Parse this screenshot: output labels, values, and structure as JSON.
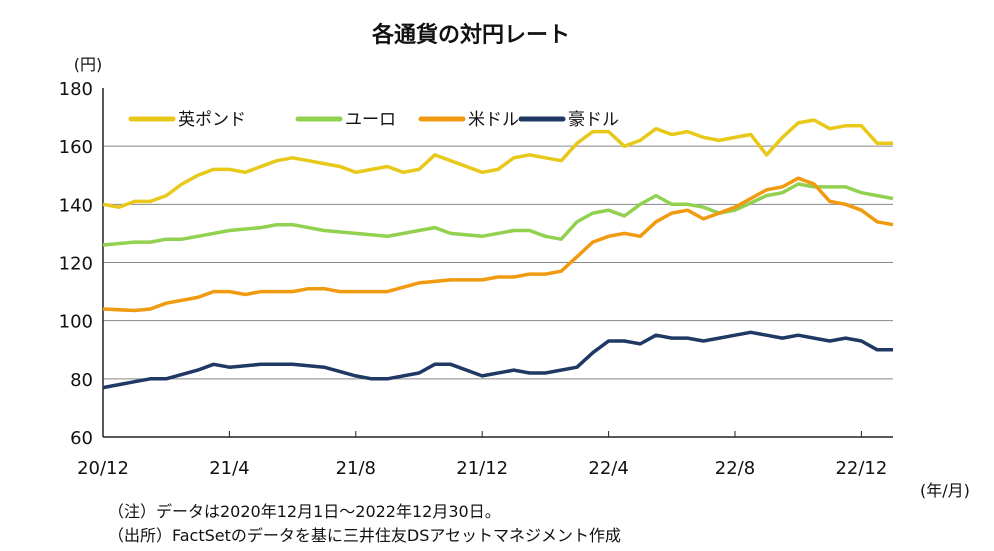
{
  "chart_data": {
    "type": "line",
    "title": "各通貨の対円レート",
    "ylabel": "(円)",
    "xlabel": "(年/月)",
    "ylim": [
      60,
      180
    ],
    "yticks": [
      60,
      80,
      100,
      120,
      140,
      160,
      180
    ],
    "x_unit": "months since 2020/12/1",
    "xlim": [
      0,
      25
    ],
    "xticks": [
      {
        "x": 0,
        "label": "20/12"
      },
      {
        "x": 4,
        "label": "21/4"
      },
      {
        "x": 8,
        "label": "21/8"
      },
      {
        "x": 12,
        "label": "21/12"
      },
      {
        "x": 16,
        "label": "22/4"
      },
      {
        "x": 20,
        "label": "22/8"
      },
      {
        "x": 24,
        "label": "22/12"
      }
    ],
    "grid": true,
    "legend": "top-left",
    "series": [
      {
        "name": "英ポンド",
        "color": "#e8c818",
        "points": [
          [
            0,
            140
          ],
          [
            0.5,
            139
          ],
          [
            1,
            141
          ],
          [
            1.5,
            141
          ],
          [
            2,
            143
          ],
          [
            2.5,
            147
          ],
          [
            3,
            150
          ],
          [
            3.5,
            152
          ],
          [
            4,
            152
          ],
          [
            4.5,
            151
          ],
          [
            5,
            153
          ],
          [
            5.5,
            155
          ],
          [
            6,
            156
          ],
          [
            6.5,
            155
          ],
          [
            7,
            154
          ],
          [
            7.5,
            153
          ],
          [
            8,
            151
          ],
          [
            8.5,
            152
          ],
          [
            9,
            153
          ],
          [
            9.5,
            151
          ],
          [
            10,
            152
          ],
          [
            10.5,
            157
          ],
          [
            11,
            155
          ],
          [
            11.5,
            153
          ],
          [
            12,
            151
          ],
          [
            12.5,
            152
          ],
          [
            13,
            156
          ],
          [
            13.5,
            157
          ],
          [
            14,
            156
          ],
          [
            14.5,
            155
          ],
          [
            15,
            161
          ],
          [
            15.5,
            165
          ],
          [
            16,
            165
          ],
          [
            16.5,
            160
          ],
          [
            17,
            162
          ],
          [
            17.5,
            166
          ],
          [
            18,
            164
          ],
          [
            18.5,
            165
          ],
          [
            19,
            163
          ],
          [
            19.5,
            162
          ],
          [
            20,
            163
          ],
          [
            20.5,
            164
          ],
          [
            21,
            157
          ],
          [
            21.5,
            163
          ],
          [
            22,
            168
          ],
          [
            22.5,
            169
          ],
          [
            23,
            166
          ],
          [
            23.5,
            167
          ],
          [
            24,
            167
          ],
          [
            24.5,
            161
          ],
          [
            25,
            161
          ]
        ]
      },
      {
        "name": "ユーロ",
        "color": "#92d050",
        "points": [
          [
            0,
            126
          ],
          [
            1,
            127
          ],
          [
            1.5,
            127
          ],
          [
            2,
            128
          ],
          [
            2.5,
            128
          ],
          [
            3,
            129
          ],
          [
            4,
            131
          ],
          [
            5,
            132
          ],
          [
            5.5,
            133
          ],
          [
            6,
            133
          ],
          [
            7,
            131
          ],
          [
            8,
            130
          ],
          [
            9,
            129
          ],
          [
            10,
            131
          ],
          [
            10.5,
            132
          ],
          [
            11,
            130
          ],
          [
            12,
            129
          ],
          [
            13,
            131
          ],
          [
            13.5,
            131
          ],
          [
            14,
            129
          ],
          [
            14.5,
            128
          ],
          [
            15,
            134
          ],
          [
            15.5,
            137
          ],
          [
            16,
            138
          ],
          [
            16.5,
            136
          ],
          [
            17,
            140
          ],
          [
            17.5,
            143
          ],
          [
            18,
            140
          ],
          [
            18.5,
            140
          ],
          [
            19,
            139
          ],
          [
            19.5,
            137
          ],
          [
            20,
            138
          ],
          [
            21,
            143
          ],
          [
            21.5,
            144
          ],
          [
            22,
            147
          ],
          [
            22.5,
            146
          ],
          [
            23,
            146
          ],
          [
            23.5,
            146
          ],
          [
            24,
            144
          ],
          [
            24.5,
            143
          ],
          [
            25,
            142
          ]
        ]
      },
      {
        "name": "米ドル",
        "color": "#f09a10",
        "points": [
          [
            0,
            104
          ],
          [
            1,
            103.5
          ],
          [
            1.5,
            104
          ],
          [
            2,
            106
          ],
          [
            3,
            108
          ],
          [
            3.5,
            110
          ],
          [
            4,
            110
          ],
          [
            4.5,
            109
          ],
          [
            5,
            110
          ],
          [
            5.5,
            110
          ],
          [
            6,
            110
          ],
          [
            6.5,
            111
          ],
          [
            7,
            111
          ],
          [
            7.5,
            110
          ],
          [
            8,
            110
          ],
          [
            9,
            110
          ],
          [
            10,
            113
          ],
          [
            11,
            114
          ],
          [
            12,
            114
          ],
          [
            12.5,
            115
          ],
          [
            13,
            115
          ],
          [
            13.5,
            116
          ],
          [
            14,
            116
          ],
          [
            14.5,
            117
          ],
          [
            15,
            122
          ],
          [
            15.5,
            127
          ],
          [
            16,
            129
          ],
          [
            16.5,
            130
          ],
          [
            17,
            129
          ],
          [
            17.5,
            134
          ],
          [
            18,
            137
          ],
          [
            18.5,
            138
          ],
          [
            19,
            135
          ],
          [
            19.5,
            137
          ],
          [
            20,
            139
          ],
          [
            20.5,
            142
          ],
          [
            21,
            145
          ],
          [
            21.5,
            146
          ],
          [
            22,
            149
          ],
          [
            22.5,
            147
          ],
          [
            23,
            141
          ],
          [
            23.5,
            140
          ],
          [
            24,
            138
          ],
          [
            24.5,
            134
          ],
          [
            25,
            133
          ]
        ]
      },
      {
        "name": "豪ドル",
        "color": "#1f3864",
        "points": [
          [
            0,
            77
          ],
          [
            1,
            79
          ],
          [
            1.5,
            80
          ],
          [
            2,
            80
          ],
          [
            3,
            83
          ],
          [
            3.5,
            85
          ],
          [
            4,
            84
          ],
          [
            5,
            85
          ],
          [
            6,
            85
          ],
          [
            7,
            84
          ],
          [
            8,
            81
          ],
          [
            8.5,
            80
          ],
          [
            9,
            80
          ],
          [
            10,
            82
          ],
          [
            10.5,
            85
          ],
          [
            11,
            85
          ],
          [
            12,
            81
          ],
          [
            13,
            83
          ],
          [
            13.5,
            82
          ],
          [
            14,
            82
          ],
          [
            15,
            84
          ],
          [
            15.5,
            89
          ],
          [
            16,
            93
          ],
          [
            16.5,
            93
          ],
          [
            17,
            92
          ],
          [
            17.5,
            95
          ],
          [
            18,
            94
          ],
          [
            18.5,
            94
          ],
          [
            19,
            93
          ],
          [
            19.5,
            94
          ],
          [
            20,
            95
          ],
          [
            20.5,
            96
          ],
          [
            21,
            95
          ],
          [
            21.5,
            94
          ],
          [
            22,
            95
          ],
          [
            22.5,
            94
          ],
          [
            23,
            93
          ],
          [
            23.5,
            94
          ],
          [
            24,
            93
          ],
          [
            24.5,
            90
          ],
          [
            25,
            90
          ]
        ]
      }
    ]
  },
  "notes": {
    "note": "（注）データは2020年12月1日～2022年12月30日。",
    "source": "（出所）FactSetのデータを基に三井住友DSアセットマネジメント作成"
  }
}
